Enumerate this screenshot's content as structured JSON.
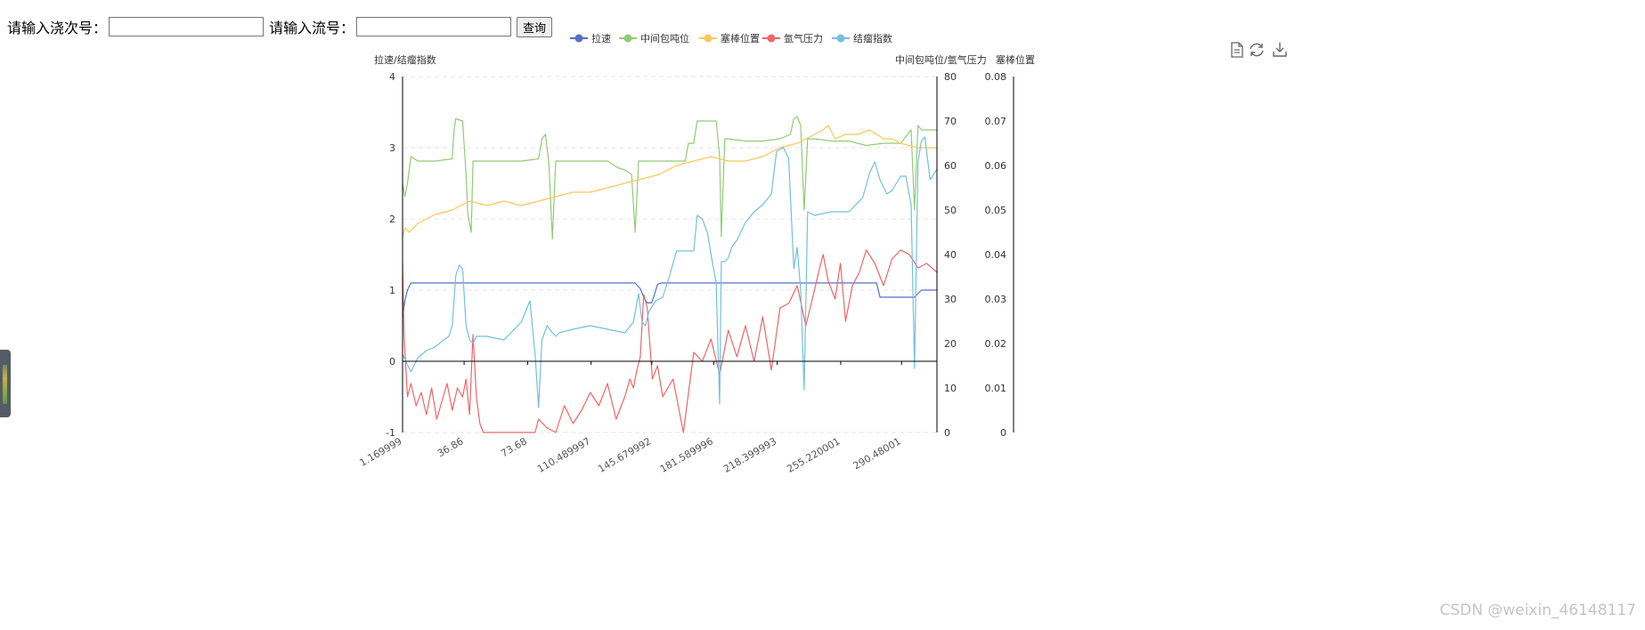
{
  "query_form": {
    "heat_label": "请输入浇次号：",
    "heat_value": "",
    "stream_label": "请输入流号：",
    "stream_value": "",
    "query_button": "查询"
  },
  "toolbox": {
    "icons": [
      "data-view-icon",
      "restore-icon",
      "save-image-icon"
    ]
  },
  "watermark": "CSDN @weixin_46148117",
  "chart_data": {
    "type": "line",
    "title": "",
    "legend": {
      "position": "top-center",
      "items": [
        "拉速",
        "中间包吨位",
        "塞棒位置",
        "氩气压力",
        "结瘤指数"
      ]
    },
    "grid": {
      "horizontal_dashed": true
    },
    "axes": {
      "left": {
        "name": "拉速/结瘤指数",
        "range": [
          -1,
          4
        ],
        "ticks": [
          -1,
          0,
          1,
          2,
          3,
          4
        ]
      },
      "right1": {
        "name": "中间包吨位/氩气压力",
        "range": [
          0,
          80
        ],
        "ticks": [
          0,
          10,
          20,
          30,
          40,
          50,
          60,
          70,
          80
        ]
      },
      "right2": {
        "name": "塞棒位置",
        "range": [
          0,
          0.08
        ],
        "ticks": [
          "0",
          "0.01",
          "0.02",
          "0.03",
          "0.04",
          "0.05",
          "0.06",
          "0.07",
          "0.08"
        ]
      },
      "x": {
        "range": [
          1.169999,
          311
        ],
        "tick_values": [
          1.169999,
          36.86,
          73.68,
          110.489997,
          145.679992,
          181.589996,
          218.399993,
          255.220001,
          290.48001
        ],
        "tick_labels": [
          "1.169999",
          "36.86",
          "73.68",
          "110.489997",
          "145.679992",
          "181.589996",
          "218.399993",
          "255.220001",
          "290.48001"
        ]
      }
    },
    "series": [
      {
        "name": "拉速",
        "color": "#5470c6",
        "axis": "left",
        "x": [
          1.17,
          2.5,
          4,
          6,
          10,
          20,
          40,
          60,
          80,
          100,
          120,
          136,
          139,
          141,
          143,
          145.5,
          147,
          149,
          151,
          153,
          170,
          200,
          230,
          260,
          272,
          276,
          278,
          290,
          298,
          302,
          306,
          311
        ],
        "y": [
          0.6,
          0.85,
          1.0,
          1.1,
          1.1,
          1.1,
          1.1,
          1.1,
          1.1,
          1.1,
          1.1,
          1.1,
          1.02,
          0.9,
          0.82,
          0.82,
          0.92,
          1.08,
          1.1,
          1.1,
          1.1,
          1.1,
          1.1,
          1.1,
          1.1,
          1.1,
          0.9,
          0.9,
          0.9,
          1.0,
          1.0,
          1.0
        ]
      },
      {
        "name": "中间包吨位",
        "color": "#91cc75",
        "axis": "right1",
        "x": [
          1.17,
          2.5,
          4,
          6,
          10,
          20,
          30,
          31,
          32,
          36,
          38,
          39,
          41,
          42,
          44,
          50,
          60,
          70,
          80,
          82,
          84,
          86,
          88,
          90,
          92,
          94,
          100,
          110,
          120,
          126,
          130,
          134,
          136,
          138,
          140,
          142,
          150,
          160,
          165,
          167,
          168,
          170,
          172,
          180,
          183,
          185,
          186,
          188,
          190,
          200,
          210,
          220,
          226,
          228,
          230,
          232,
          234,
          236,
          240,
          250,
          260,
          270,
          280,
          290,
          296,
          298,
          300,
          302,
          311
        ],
        "y": [
          56,
          53,
          56,
          62,
          61,
          61,
          61.5,
          68,
          70.5,
          70,
          58,
          49,
          45,
          61,
          61,
          61,
          61,
          61,
          61.5,
          66,
          67,
          60.5,
          43.5,
          61,
          61,
          61,
          61,
          61,
          61,
          59.5,
          59,
          58,
          45,
          61,
          61,
          61,
          61,
          61,
          61,
          65,
          65,
          65,
          70,
          70,
          70,
          62,
          44,
          66,
          66,
          65.5,
          65.5,
          66,
          67,
          70.5,
          71,
          69,
          50,
          66,
          66,
          65.5,
          65.5,
          64.5,
          65,
          65,
          68,
          50,
          69,
          68,
          68
        ]
      },
      {
        "name": "塞棒位置",
        "color": "#fac858",
        "axis": "right2",
        "x": [
          1.17,
          2.5,
          5,
          10,
          20,
          30,
          40,
          50,
          60,
          70,
          80,
          90,
          100,
          110,
          120,
          130,
          140,
          150,
          160,
          170,
          180,
          190,
          200,
          210,
          220,
          230,
          240,
          245,
          248,
          252,
          258,
          265,
          272,
          280,
          285,
          290,
          300,
          311
        ],
        "y": [
          0.044,
          0.046,
          0.045,
          0.047,
          0.049,
          0.05,
          0.052,
          0.051,
          0.052,
          0.051,
          0.052,
          0.053,
          0.054,
          0.054,
          0.055,
          0.056,
          0.057,
          0.058,
          0.06,
          0.061,
          0.062,
          0.061,
          0.061,
          0.062,
          0.064,
          0.065,
          0.067,
          0.068,
          0.069,
          0.066,
          0.067,
          0.067,
          0.068,
          0.066,
          0.066,
          0.065,
          0.064,
          0.064
        ]
      },
      {
        "name": "氩气压力",
        "color": "#ee6666",
        "axis": "right1",
        "x": [
          1.17,
          2,
          4,
          6,
          9,
          12,
          15,
          18,
          21,
          24,
          27,
          30,
          33,
          36,
          38,
          40,
          42,
          44,
          46,
          48,
          50,
          60,
          70,
          78,
          80,
          85,
          90,
          95,
          100,
          105,
          110,
          115,
          120,
          125,
          130,
          133,
          135,
          137,
          139,
          141,
          143,
          146,
          149,
          152,
          155,
          158,
          161,
          164,
          170,
          175,
          180,
          185,
          190,
          195,
          200,
          205,
          210,
          215,
          220,
          225,
          230,
          235,
          240,
          243,
          245,
          248,
          252,
          255,
          258,
          262,
          266,
          270,
          275,
          280,
          285,
          290,
          295,
          300,
          305,
          311
        ],
        "y": [
          38,
          22,
          8,
          11,
          6,
          9,
          4,
          10,
          3,
          7,
          11,
          5,
          10,
          8,
          12,
          4,
          22,
          8,
          2,
          0,
          0,
          0,
          0,
          0,
          3,
          1,
          0,
          6,
          2,
          5,
          9,
          6,
          11,
          3,
          8,
          12,
          10,
          14,
          17,
          31,
          28,
          12,
          15,
          8,
          10,
          12,
          6,
          0,
          18,
          16,
          21,
          13,
          23,
          17,
          24,
          16,
          26,
          14,
          28,
          29,
          33,
          24,
          32,
          37,
          40,
          34,
          30,
          38,
          25,
          33,
          36,
          41,
          38,
          33,
          39,
          41,
          40,
          37,
          38,
          36
        ]
      },
      {
        "name": "结瘤指数",
        "color": "#73c0de",
        "axis": "left",
        "x": [
          1.17,
          3,
          6,
          10,
          15,
          20,
          25,
          28,
          30,
          32,
          34,
          36,
          38,
          40,
          42,
          44,
          50,
          60,
          70,
          75,
          78,
          80,
          82,
          85,
          88,
          90,
          92,
          100,
          110,
          120,
          130,
          135,
          138,
          140,
          142,
          144,
          148,
          152,
          156,
          160,
          165,
          170,
          172,
          175,
          178,
          180,
          183,
          185,
          186,
          188,
          190,
          192,
          195,
          200,
          205,
          210,
          215,
          218,
          222,
          225,
          228,
          230,
          232,
          234,
          236,
          240,
          250,
          260,
          268,
          272,
          275,
          278,
          282,
          285,
          290,
          293,
          296,
          298,
          300,
          302,
          304,
          307,
          311
        ],
        "y": [
          0.1,
          0.0,
          -0.15,
          0.05,
          0.15,
          0.2,
          0.3,
          0.35,
          0.5,
          1.2,
          1.35,
          1.3,
          0.5,
          0.3,
          0.25,
          0.35,
          0.35,
          0.3,
          0.55,
          0.85,
          0.1,
          -0.65,
          0.3,
          0.5,
          0.4,
          0.35,
          0.4,
          0.45,
          0.5,
          0.45,
          0.4,
          0.55,
          0.95,
          0.55,
          0.5,
          0.7,
          0.85,
          0.9,
          1.2,
          1.55,
          1.55,
          1.55,
          2.05,
          2.0,
          1.8,
          1.5,
          1.1,
          -0.6,
          1.4,
          1.4,
          1.45,
          1.6,
          1.7,
          1.95,
          2.1,
          2.2,
          2.35,
          2.95,
          3.0,
          2.85,
          1.3,
          1.6,
          1.0,
          -0.4,
          2.1,
          2.05,
          2.1,
          2.1,
          2.3,
          2.65,
          2.8,
          2.55,
          2.35,
          2.4,
          2.6,
          2.6,
          2.2,
          -0.1,
          2.8,
          3.1,
          3.15,
          2.55,
          2.7
        ]
      }
    ]
  }
}
